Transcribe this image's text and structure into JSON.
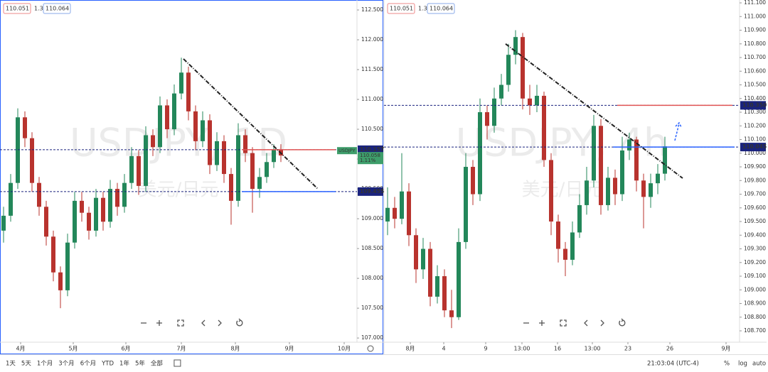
{
  "chart_data": [
    {
      "type": "candlestick",
      "title": "USDJPY, 1D",
      "subtitle": "美元/日元",
      "legend": [
        "110.051",
        "1.3",
        "110.064"
      ],
      "xlim": [
        -0.5,
        49.7
      ],
      "xticks": [
        {
          "value": 2.4,
          "label": "4月"
        },
        {
          "value": 9.8,
          "label": "5月"
        },
        {
          "value": 17.2,
          "label": "6月"
        },
        {
          "value": 25,
          "label": "7月"
        },
        {
          "value": 32.6,
          "label": "8月"
        },
        {
          "value": 40.2,
          "label": "9月"
        },
        {
          "value": 47.9,
          "label": "10月"
        }
      ],
      "ylim": [
        106.93,
        112.667
      ],
      "yticks": [
        {
          "value": 107,
          "label": "107.000"
        },
        {
          "value": 107.5,
          "label": "107.500"
        },
        {
          "value": 108,
          "label": "108.000"
        },
        {
          "value": 108.5,
          "label": "108.500"
        },
        {
          "value": 109,
          "label": "109.000"
        },
        {
          "value": 109.5,
          "label": "109.500"
        },
        {
          "value": 110,
          "label": "110.000"
        },
        {
          "value": 110.5,
          "label": "110.500"
        },
        {
          "value": 111,
          "label": "111.000"
        },
        {
          "value": 111.5,
          "label": "111.500"
        },
        {
          "value": 112,
          "label": "112.000"
        },
        {
          "value": 112.5,
          "label": "112.500"
        }
      ],
      "up_color": "#23875a",
      "down_color": "#b8332e",
      "open": [
        108.8,
        109.05,
        109.6,
        110.7,
        110.35,
        109.6,
        109.2,
        108.7,
        108.1,
        107.8,
        108.6,
        109.3,
        109.1,
        108.8,
        109.35,
        108.95,
        109.5,
        109.2,
        109.6,
        110.05,
        109.55,
        110.4,
        110.2,
        110.9,
        110.5,
        111.1,
        111.45,
        110.8,
        110.3,
        110.65,
        109.9,
        110.3,
        109.75,
        109.3,
        110.4,
        110.1,
        109.5,
        109.7,
        109.95,
        110.15
      ],
      "high": [
        109.2,
        109.75,
        110.85,
        110.8,
        110.45,
        109.7,
        109.3,
        108.8,
        108.2,
        108.75,
        109.45,
        109.45,
        109.2,
        109.5,
        109.45,
        109.65,
        109.6,
        109.75,
        110.2,
        110.15,
        110.55,
        110.5,
        111.05,
        111.0,
        111.25,
        111.7,
        111.55,
        110.9,
        110.8,
        110.75,
        110.45,
        110.4,
        109.85,
        110.6,
        110.5,
        110.2,
        109.85,
        110.1,
        110.25,
        110.25
      ],
      "low": [
        108.6,
        108.95,
        109.5,
        110.2,
        109.45,
        109.05,
        108.55,
        107.95,
        107.5,
        107.7,
        108.5,
        108.95,
        108.65,
        108.7,
        108.8,
        108.85,
        109.05,
        109.1,
        109.5,
        109.4,
        109.45,
        110.05,
        110.1,
        110.35,
        110.4,
        111.0,
        110.65,
        110.15,
        110.2,
        109.75,
        109.8,
        109.6,
        108.9,
        109.2,
        109.95,
        109.1,
        109.35,
        109.6,
        109.85,
        109.95
      ],
      "close": [
        109.05,
        109.6,
        110.7,
        110.35,
        109.6,
        109.2,
        108.7,
        108.1,
        107.8,
        108.6,
        109.3,
        109.1,
        108.8,
        109.35,
        108.95,
        109.5,
        109.2,
        109.6,
        110.05,
        109.55,
        110.4,
        110.2,
        110.9,
        110.5,
        111.1,
        111.45,
        110.8,
        110.3,
        110.65,
        109.9,
        110.3,
        109.75,
        109.3,
        110.4,
        110.1,
        109.5,
        109.7,
        109.95,
        110.15,
        110.06
      ],
      "levels": [
        {
          "value": 110.157,
          "label": "110.157",
          "color": "#1a237e",
          "segment": [
            33.5,
            46.7
          ],
          "segment_color": "#e05353"
        },
        {
          "value": 109.455,
          "label": "109.455",
          "color": "#1a237e",
          "segment": [
            33.5,
            46.7
          ],
          "segment_color": "#2962ff"
        }
      ],
      "trendline": {
        "x": [
          25.3,
          44.2
        ],
        "y": [
          111.68,
          109.5
        ]
      },
      "price_tag": {
        "name": "USDJPY",
        "price": 110.058,
        "change": "1.11%",
        "color": "#3e9e6b"
      }
    },
    {
      "type": "candlestick",
      "title": "USDJPY, 4h",
      "subtitle": "美元/日元",
      "legend": [
        "110.051",
        "1.3",
        "110.064"
      ],
      "xlim": [
        -0.5,
        49.5
      ],
      "xticks": [
        {
          "value": 3.2,
          "label": "8月"
        },
        {
          "value": 7.9,
          "label": "4"
        },
        {
          "value": 13.8,
          "label": "9"
        },
        {
          "value": 18.9,
          "label": "13:00"
        },
        {
          "value": 23.9,
          "label": "16"
        },
        {
          "value": 28.8,
          "label": "13:00"
        },
        {
          "value": 33.8,
          "label": "23"
        },
        {
          "value": 39.7,
          "label": "26"
        },
        {
          "value": 47.6,
          "label": "9月"
        }
      ],
      "ylim": [
        108.617,
        111.121
      ],
      "yticks": [
        {
          "value": 108.7,
          "label": "108.700"
        },
        {
          "value": 108.8,
          "label": "108.800"
        },
        {
          "value": 108.9,
          "label": "108.900"
        },
        {
          "value": 109,
          "label": "109.000"
        },
        {
          "value": 109.1,
          "label": "109.100"
        },
        {
          "value": 109.2,
          "label": "109.200"
        },
        {
          "value": 109.3,
          "label": "109.300"
        },
        {
          "value": 109.4,
          "label": "109.400"
        },
        {
          "value": 109.5,
          "label": "109.500"
        },
        {
          "value": 109.6,
          "label": "109.600"
        },
        {
          "value": 109.7,
          "label": "109.700"
        },
        {
          "value": 109.8,
          "label": "109.800"
        },
        {
          "value": 109.9,
          "label": "109.900"
        },
        {
          "value": 110,
          "label": "110.000"
        },
        {
          "value": 110.1,
          "label": "110.100"
        },
        {
          "value": 110.2,
          "label": "110.200"
        },
        {
          "value": 110.3,
          "label": "110.300"
        },
        {
          "value": 110.4,
          "label": "110.400"
        },
        {
          "value": 110.5,
          "label": "110.500"
        },
        {
          "value": 110.6,
          "label": "110.600"
        },
        {
          "value": 110.7,
          "label": "110.700"
        },
        {
          "value": 110.8,
          "label": "110.800"
        },
        {
          "value": 110.9,
          "label": "110.900"
        },
        {
          "value": 111,
          "label": "111.000"
        },
        {
          "value": 111.1,
          "label": "111.100"
        }
      ],
      "up_color": "#23875a",
      "down_color": "#b8332e",
      "open": [
        109.5,
        109.6,
        109.52,
        109.72,
        109.4,
        109.15,
        109.3,
        108.95,
        109.1,
        108.85,
        108.8,
        109.35,
        109.9,
        109.7,
        110.3,
        110.2,
        110.4,
        110.5,
        110.72,
        110.85,
        110.4,
        110.35,
        110.42,
        109.95,
        109.5,
        109.3,
        109.22,
        109.42,
        109.62,
        109.8,
        110.2,
        109.62,
        109.82,
        109.7,
        110.02,
        110.1,
        109.8,
        109.68,
        109.78,
        109.85
      ],
      "high": [
        109.75,
        109.68,
        110.0,
        109.78,
        109.45,
        109.38,
        109.35,
        109.18,
        109.15,
        109.0,
        109.45,
        110.0,
        109.95,
        110.4,
        110.35,
        110.48,
        110.58,
        110.8,
        110.9,
        110.88,
        110.5,
        110.5,
        110.45,
        110.0,
        109.55,
        109.35,
        109.5,
        109.7,
        109.9,
        110.28,
        110.25,
        109.9,
        109.88,
        110.12,
        110.15,
        110.12,
        109.85,
        109.85,
        109.92,
        110.12
      ],
      "low": [
        109.4,
        109.45,
        109.48,
        109.32,
        109.05,
        109.08,
        108.88,
        108.9,
        108.8,
        108.72,
        108.78,
        109.3,
        109.62,
        109.65,
        110.1,
        110.15,
        110.35,
        110.45,
        110.65,
        110.32,
        110.28,
        110.3,
        109.9,
        109.4,
        109.2,
        109.1,
        109.18,
        109.38,
        109.55,
        109.75,
        109.55,
        109.58,
        109.62,
        109.65,
        109.95,
        109.72,
        109.45,
        109.6,
        109.7,
        109.8
      ],
      "close": [
        109.6,
        109.52,
        109.72,
        109.4,
        109.15,
        109.3,
        108.95,
        109.1,
        108.85,
        108.8,
        109.35,
        109.9,
        109.7,
        110.3,
        110.2,
        110.4,
        110.5,
        110.72,
        110.85,
        110.4,
        110.35,
        110.42,
        109.95,
        109.5,
        109.3,
        109.22,
        109.42,
        109.62,
        109.8,
        110.2,
        109.62,
        109.82,
        109.7,
        110.02,
        110.1,
        109.8,
        109.68,
        109.78,
        109.85,
        110.05
      ],
      "levels": [
        {
          "value": 110.35,
          "label": "110.350",
          "color": "#1a237e",
          "segment": [
            32.3,
            48.5
          ],
          "segment_color": "#e05353"
        },
        {
          "value": 110.045,
          "label": "110.045",
          "color": "#1a237e",
          "segment": [
            31.7,
            48.8
          ],
          "segment_color": "#2962ff"
        }
      ],
      "trendline": {
        "x": [
          16.6,
          41.5
        ],
        "y": [
          110.8,
          109.817
        ]
      }
    }
  ],
  "toolbar": {
    "ranges": [
      "1天",
      "5天",
      "1个月",
      "3个月",
      "6个月",
      "YTD",
      "1年",
      "5年",
      "全部"
    ],
    "time": "21:03:04 (UTC-4)",
    "options": [
      "%",
      "log",
      "auto"
    ]
  }
}
